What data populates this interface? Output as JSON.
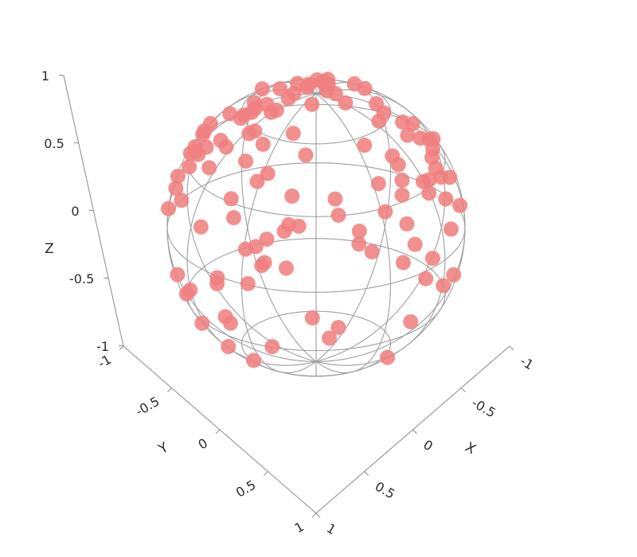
{
  "chart_data": {
    "type": "scatter3d",
    "title": "",
    "axes": {
      "x": {
        "label": "X",
        "range": [
          -1,
          1
        ],
        "ticks": [
          "-1",
          "-0.5",
          "0",
          "0.5",
          "1"
        ]
      },
      "y": {
        "label": "Y",
        "range": [
          -1,
          1
        ],
        "ticks": [
          "-1",
          "-0.5",
          "0",
          "0.5",
          "1"
        ]
      },
      "z": {
        "label": "Z",
        "range": [
          -1,
          1
        ],
        "ticks": [
          "-1",
          "-0.5",
          "0",
          "0.5",
          "1"
        ]
      }
    },
    "wireframe": "unit-sphere",
    "marker_color": "#f08080",
    "wire_color": "#9e9e9e",
    "points_count": 120
  }
}
